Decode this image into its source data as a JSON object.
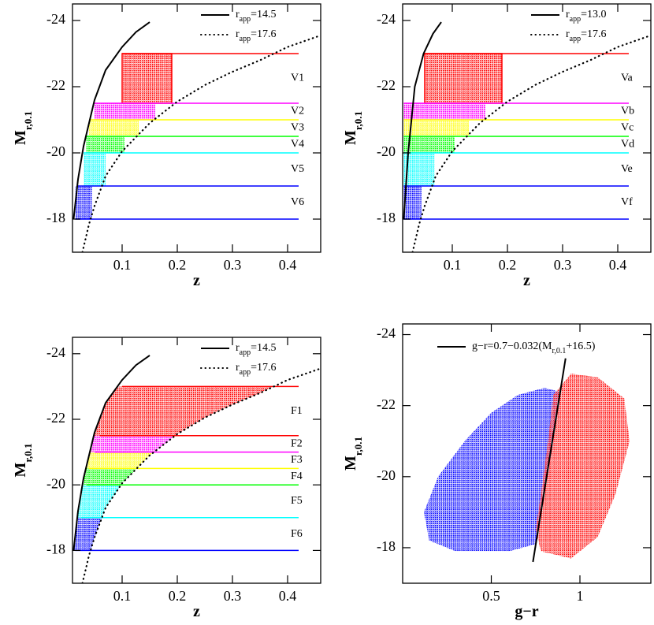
{
  "chart_data": [
    {
      "type": "line",
      "xlabel": "z",
      "ylabel": "M",
      "ylabel_sub": "r,0.1",
      "xlim": [
        0.01,
        0.46
      ],
      "ylim": [
        -17,
        -24.5
      ],
      "xticks": [
        0.1,
        0.2,
        0.3,
        0.4
      ],
      "yticks": [
        -18,
        -20,
        -22,
        -24
      ],
      "legend": "upper right",
      "series": [
        {
          "name": "r",
          "name_sub": "app",
          "name_rest": "=14.5",
          "style": "solid",
          "color": "#000000",
          "x": [
            0.012,
            0.02,
            0.03,
            0.05,
            0.07,
            0.1,
            0.125,
            0.15
          ],
          "y": [
            -18,
            -19.2,
            -20.2,
            -21.6,
            -22.5,
            -23.2,
            -23.65,
            -23.95
          ]
        },
        {
          "name": "r",
          "name_sub": "app",
          "name_rest": "=17.6",
          "style": "dotted",
          "color": "#000000",
          "x": [
            0.028,
            0.04,
            0.05,
            0.07,
            0.1,
            0.15,
            0.2,
            0.25,
            0.3,
            0.35,
            0.4,
            0.46
          ],
          "y": [
            -17,
            -17.85,
            -18.4,
            -19.3,
            -20.05,
            -20.9,
            -21.55,
            -22.05,
            -22.45,
            -22.8,
            -23.2,
            -23.55
          ]
        }
      ],
      "limit_lines": [
        {
          "y": -23,
          "x": [
            0.1,
            0.42
          ],
          "color": "#ff0000"
        },
        {
          "y": -21.5,
          "x": [
            0.05,
            0.42
          ],
          "color": "#ff00ff"
        },
        {
          "y": -21,
          "x": [
            0.04,
            0.42
          ],
          "color": "#ffff00"
        },
        {
          "y": -20.5,
          "x": [
            0.035,
            0.42
          ],
          "color": "#00ff00"
        },
        {
          "y": -20,
          "x": [
            0.03,
            0.42
          ],
          "color": "#00ffff"
        },
        {
          "y": -19,
          "x": [
            0.02,
            0.42
          ],
          "color": "#0000ff"
        },
        {
          "y": -18,
          "x": [
            0.015,
            0.42
          ],
          "color": "#0000ff"
        }
      ],
      "samples": [
        {
          "name": "V1",
          "color": "#ff0000",
          "ylim": [
            -23,
            -21.5
          ],
          "xlim": [
            0.1,
            0.19
          ],
          "outline": true
        },
        {
          "name": "V2",
          "color": "#ff00ff",
          "ylim": [
            -21.5,
            -21
          ],
          "xlim": [
            0.05,
            0.16
          ]
        },
        {
          "name": "V3",
          "color": "#ffff00",
          "ylim": [
            -21,
            -20.5
          ],
          "xlim": [
            0.04,
            0.13
          ]
        },
        {
          "name": "V4",
          "color": "#00ff00",
          "ylim": [
            -20.5,
            -20
          ],
          "xlim": [
            0.035,
            0.104
          ]
        },
        {
          "name": "V5",
          "color": "#00ffff",
          "ylim": [
            -20,
            -19
          ],
          "xlim": [
            0.03,
            0.07
          ]
        },
        {
          "name": "V6",
          "color": "#0000ff",
          "ylim": [
            -19,
            -18
          ],
          "xlim": [
            0.015,
            0.045
          ]
        }
      ]
    },
    {
      "type": "line",
      "xlabel": "z",
      "ylabel": "M",
      "ylabel_sub": "r,0.1",
      "xlim": [
        0.01,
        0.46
      ],
      "ylim": [
        -17,
        -24.5
      ],
      "xticks": [
        0.1,
        0.2,
        0.3,
        0.4
      ],
      "yticks": [
        -18,
        -20,
        -22,
        -24
      ],
      "legend": "upper right",
      "series": [
        {
          "name": "r",
          "name_sub": "app",
          "name_rest": "=13.0",
          "style": "solid",
          "color": "#000000",
          "x": [
            0.012,
            0.02,
            0.032,
            0.048,
            0.065,
            0.08
          ],
          "y": [
            -18,
            -20,
            -22,
            -23,
            -23.6,
            -23.95
          ]
        },
        {
          "name": "r",
          "name_sub": "app",
          "name_rest": "=17.6",
          "style": "dotted",
          "color": "#000000",
          "x": [
            0.028,
            0.04,
            0.05,
            0.07,
            0.1,
            0.15,
            0.2,
            0.25,
            0.3,
            0.35,
            0.4,
            0.46
          ],
          "y": [
            -17,
            -17.85,
            -18.4,
            -19.3,
            -20.05,
            -20.9,
            -21.55,
            -22.05,
            -22.45,
            -22.8,
            -23.2,
            -23.55
          ]
        }
      ],
      "limit_lines": [
        {
          "y": -23,
          "x": [
            0.05,
            0.42
          ],
          "color": "#ff0000"
        },
        {
          "y": -21.5,
          "x": [
            0.012,
            0.42
          ],
          "color": "#ff00ff"
        },
        {
          "y": -21,
          "x": [
            0.012,
            0.42
          ],
          "color": "#ffff00"
        },
        {
          "y": -20.5,
          "x": [
            0.012,
            0.42
          ],
          "color": "#00ff00"
        },
        {
          "y": -20,
          "x": [
            0.012,
            0.42
          ],
          "color": "#00ffff"
        },
        {
          "y": -19,
          "x": [
            0.012,
            0.42
          ],
          "color": "#0000ff"
        },
        {
          "y": -18,
          "x": [
            0.012,
            0.42
          ],
          "color": "#0000ff"
        }
      ],
      "samples": [
        {
          "name": "Va",
          "color": "#ff0000",
          "ylim": [
            -23,
            -21.5
          ],
          "xlim": [
            0.05,
            0.19
          ],
          "outline": true
        },
        {
          "name": "Vb",
          "color": "#ff00ff",
          "ylim": [
            -21.5,
            -21
          ],
          "xlim": [
            0.012,
            0.16
          ]
        },
        {
          "name": "Vc",
          "color": "#ffff00",
          "ylim": [
            -21,
            -20.5
          ],
          "xlim": [
            0.012,
            0.13
          ]
        },
        {
          "name": "Vd",
          "color": "#00ff00",
          "ylim": [
            -20.5,
            -20
          ],
          "xlim": [
            0.012,
            0.104
          ]
        },
        {
          "name": "Ve",
          "color": "#00ffff",
          "ylim": [
            -20,
            -19
          ],
          "xlim": [
            0.012,
            0.068
          ]
        },
        {
          "name": "Vf",
          "color": "#0000ff",
          "ylim": [
            -19,
            -18
          ],
          "xlim": [
            0.012,
            0.044
          ]
        }
      ]
    },
    {
      "type": "line",
      "xlabel": "z",
      "ylabel": "M",
      "ylabel_sub": "r,0.1",
      "xlim": [
        0.01,
        0.46
      ],
      "ylim": [
        -17,
        -24.5
      ],
      "xticks": [
        0.1,
        0.2,
        0.3,
        0.4
      ],
      "yticks": [
        -18,
        -20,
        -22,
        -24
      ],
      "legend": "upper right",
      "fill_between_series": true,
      "series": [
        {
          "name": "r",
          "name_sub": "app",
          "name_rest": "=14.5",
          "style": "solid",
          "color": "#000000",
          "x": [
            0.012,
            0.02,
            0.03,
            0.05,
            0.07,
            0.1,
            0.125,
            0.15
          ],
          "y": [
            -18,
            -19.2,
            -20.2,
            -21.6,
            -22.5,
            -23.2,
            -23.65,
            -23.95
          ]
        },
        {
          "name": "r",
          "name_sub": "app",
          "name_rest": "=17.6",
          "style": "dotted",
          "color": "#000000",
          "x": [
            0.028,
            0.04,
            0.05,
            0.07,
            0.1,
            0.15,
            0.2,
            0.25,
            0.3,
            0.35,
            0.4,
            0.46
          ],
          "y": [
            -17,
            -17.85,
            -18.4,
            -19.3,
            -20.05,
            -20.9,
            -21.55,
            -22.05,
            -22.45,
            -22.8,
            -23.2,
            -23.55
          ]
        }
      ],
      "limit_lines": [
        {
          "y": -23,
          "x": [
            0.1,
            0.42
          ],
          "color": "#ff0000"
        },
        {
          "y": -21.5,
          "x": [
            0.06,
            0.42
          ],
          "color": "#ff0000"
        },
        {
          "y": -21,
          "x": [
            0.05,
            0.42
          ],
          "color": "#ff00ff"
        },
        {
          "y": -20.5,
          "x": [
            0.04,
            0.42
          ],
          "color": "#ffff00"
        },
        {
          "y": -20,
          "x": [
            0.035,
            0.42
          ],
          "color": "#00ff00"
        },
        {
          "y": -19,
          "x": [
            0.025,
            0.42
          ],
          "color": "#00ffff"
        },
        {
          "y": -18,
          "x": [
            0.015,
            0.42
          ],
          "color": "#0000ff"
        }
      ],
      "samples": [
        {
          "name": "F1",
          "color": "#ff0000",
          "ylim": [
            -23,
            -21.5
          ]
        },
        {
          "name": "F2",
          "color": "#ff00ff",
          "ylim": [
            -21.5,
            -21
          ]
        },
        {
          "name": "F3",
          "color": "#ffff00",
          "ylim": [
            -21,
            -20.5
          ]
        },
        {
          "name": "F4",
          "color": "#00ff00",
          "ylim": [
            -20.5,
            -20
          ]
        },
        {
          "name": "F5",
          "color": "#00ffff",
          "ylim": [
            -20,
            -19
          ]
        },
        {
          "name": "F6",
          "color": "#0000ff",
          "ylim": [
            -19,
            -18
          ]
        }
      ]
    },
    {
      "type": "scatter",
      "xlabel": "g−r",
      "ylabel": "M",
      "ylabel_sub": "r,0.1",
      "xlim": [
        0,
        1.4
      ],
      "ylim": [
        -17,
        -24.3
      ],
      "xticks": [
        0.5,
        1
      ],
      "yticks": [
        -18,
        -20,
        -22,
        -24
      ],
      "legend": "upper left",
      "series": [
        {
          "mark": "cloud",
          "color": "#0000ff",
          "x": [
            0.15,
            0.3,
            0.6,
            0.75,
            0.8,
            0.85,
            0.88,
            0.8,
            0.65,
            0.5,
            0.35,
            0.2,
            0.12
          ],
          "y": [
            -18.2,
            -17.9,
            -17.9,
            -18.1,
            -19.5,
            -21,
            -22.4,
            -22.5,
            -22.3,
            -21.8,
            -21,
            -20,
            -19
          ]
        },
        {
          "mark": "cloud",
          "color": "#ff0000",
          "x": [
            0.78,
            0.95,
            1.1,
            1.2,
            1.28,
            1.25,
            1.1,
            0.95,
            0.85,
            0.82,
            0.78,
            0.75
          ],
          "y": [
            -17.9,
            -17.7,
            -18.3,
            -19.5,
            -21,
            -22.2,
            -22.8,
            -22.9,
            -22.3,
            -21,
            -19.5,
            -18.5
          ]
        },
        {
          "mark": "line",
          "name": "g−r=0.7−0.032(M",
          "name_sub": "r,0.1",
          "name_rest": "+16.5)",
          "style": "solid",
          "color": "#000000",
          "x": [
            0.735,
            0.919
          ],
          "y": [
            -17.6,
            -23.33
          ]
        }
      ]
    }
  ]
}
